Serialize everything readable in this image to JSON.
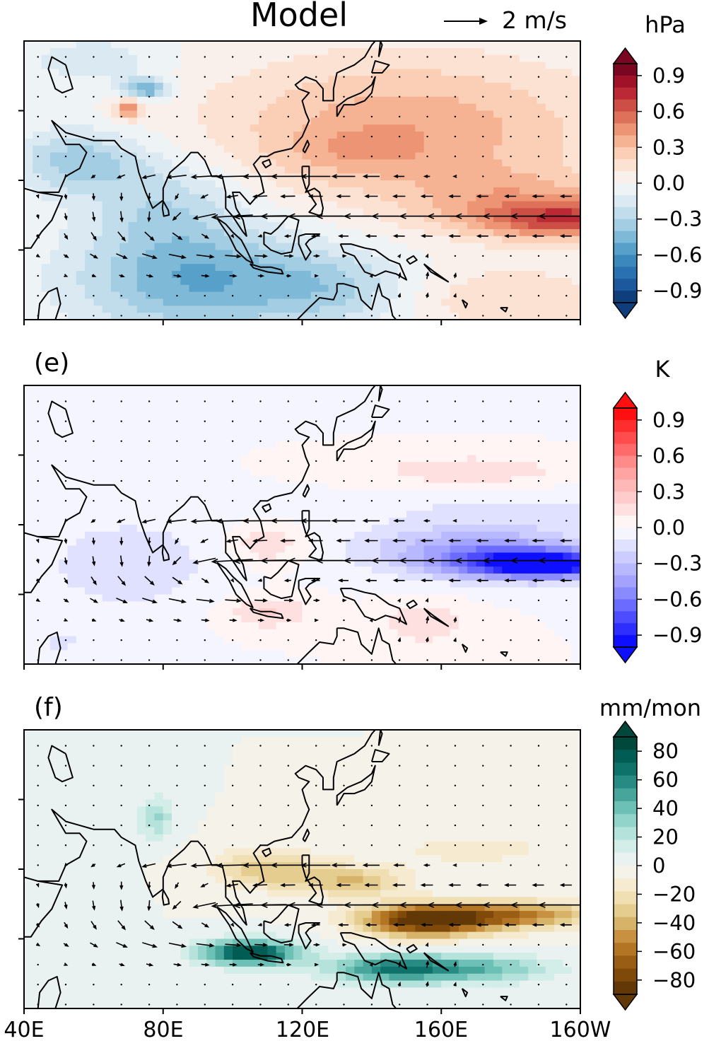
{
  "figure": {
    "title": "Model",
    "reference_vector": {
      "magnitude": 2,
      "label": "2 m/s"
    },
    "x_tick_labels": [
      "40E",
      "80E",
      "120E",
      "160E",
      "160W"
    ],
    "colors": {
      "land_outline": "#000000",
      "vector": "#000000",
      "frame": "#000000"
    }
  },
  "chart_data": [
    {
      "type": "heatmap",
      "panel_label": "",
      "variable_unit": "hPa",
      "xlim": [
        40,
        200
      ],
      "colorbar": {
        "ticks": [
          0.9,
          0.6,
          0.3,
          0.0,
          -0.3,
          -0.6,
          -0.9
        ],
        "tick_labels": [
          "0.9",
          "0.6",
          "0.3",
          "0.0",
          "−0.3",
          "−0.6",
          "−0.9"
        ],
        "range": [
          -1.0,
          1.0
        ],
        "extend": "both",
        "colormap": "RdBu_r",
        "stops": [
          "#08306b",
          "#2166ac",
          "#4393c3",
          "#92c5de",
          "#d1e5f0",
          "#f7f7f7",
          "#fddbc7",
          "#f4a582",
          "#d6604d",
          "#b2182b",
          "#67001f"
        ]
      }
    },
    {
      "type": "heatmap",
      "panel_label": "(e)",
      "variable_unit": "K",
      "xlim": [
        40,
        200
      ],
      "colorbar": {
        "ticks": [
          0.9,
          0.6,
          0.3,
          0.0,
          -0.3,
          -0.6,
          -0.9
        ],
        "tick_labels": [
          "0.9",
          "0.6",
          "0.3",
          "0.0",
          "−0.3",
          "−0.6",
          "−0.9"
        ],
        "range": [
          -1.0,
          1.0
        ],
        "extend": "both",
        "colormap": "bwr",
        "stops": [
          "#0000ff",
          "#4d4dff",
          "#9999ff",
          "#ccccff",
          "#ffffff",
          "#ffcccc",
          "#ff9999",
          "#ff4d4d",
          "#ff0000"
        ]
      }
    },
    {
      "type": "heatmap",
      "panel_label": "(f)",
      "variable_unit": "mm/mon",
      "xlim": [
        40,
        200
      ],
      "colorbar": {
        "ticks": [
          80,
          60,
          40,
          20,
          0,
          -20,
          -40,
          -60,
          -80
        ],
        "tick_labels": [
          "80",
          "60",
          "40",
          "20",
          "0",
          "−20",
          "−40",
          "−60",
          "−80"
        ],
        "range": [
          -90,
          90
        ],
        "extend": "both",
        "colormap": "BrBG",
        "stops": [
          "#543005",
          "#8c510a",
          "#bf812d",
          "#dfc27d",
          "#f6e8c3",
          "#f5f5f5",
          "#c7eae5",
          "#80cdc1",
          "#35978f",
          "#01665e",
          "#003c30"
        ]
      }
    }
  ]
}
